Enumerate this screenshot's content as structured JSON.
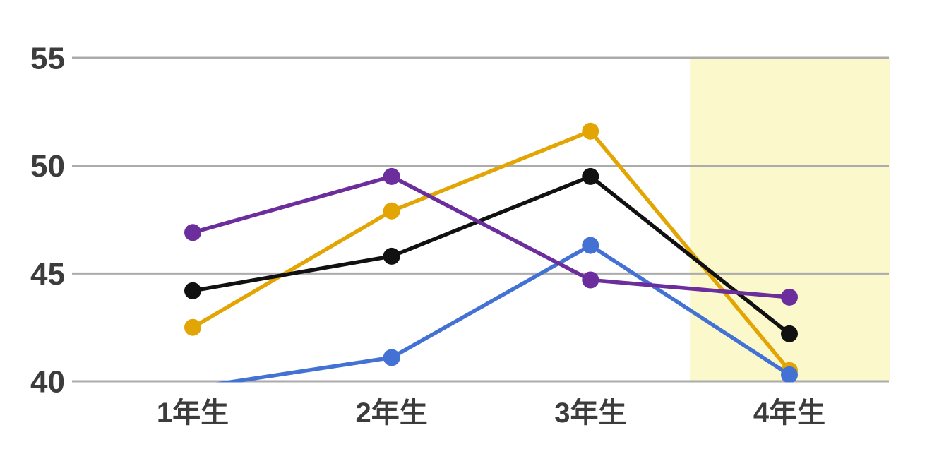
{
  "chart_data": {
    "type": "line",
    "title": "",
    "categories": [
      "1年生",
      "2年生",
      "3年生",
      "4年生"
    ],
    "series": [
      {
        "name": "amber",
        "color": "#E2A504",
        "values": [
          42.5,
          47.9,
          51.6,
          40.5
        ]
      },
      {
        "name": "black",
        "color": "#111111",
        "values": [
          44.2,
          45.8,
          49.5,
          42.2
        ]
      },
      {
        "name": "blue",
        "color": "#4472D4",
        "values": [
          39.7,
          41.1,
          46.3,
          40.3
        ]
      },
      {
        "name": "purple",
        "color": "#6B2E9C",
        "values": [
          46.9,
          49.5,
          44.7,
          43.9
        ]
      }
    ],
    "xlabel": "",
    "ylabel": "",
    "ylim": [
      40,
      55
    ],
    "yticks": [
      40,
      45,
      50,
      55
    ],
    "grid": "horizontal-only",
    "legend_position": "none",
    "highlight_band": {
      "category": "4年生",
      "color": "#FBF8CB"
    },
    "axis_text_color": "#3C3C3C",
    "gridline_color": "#ABABAB",
    "background_color": "#FFFFFF"
  }
}
